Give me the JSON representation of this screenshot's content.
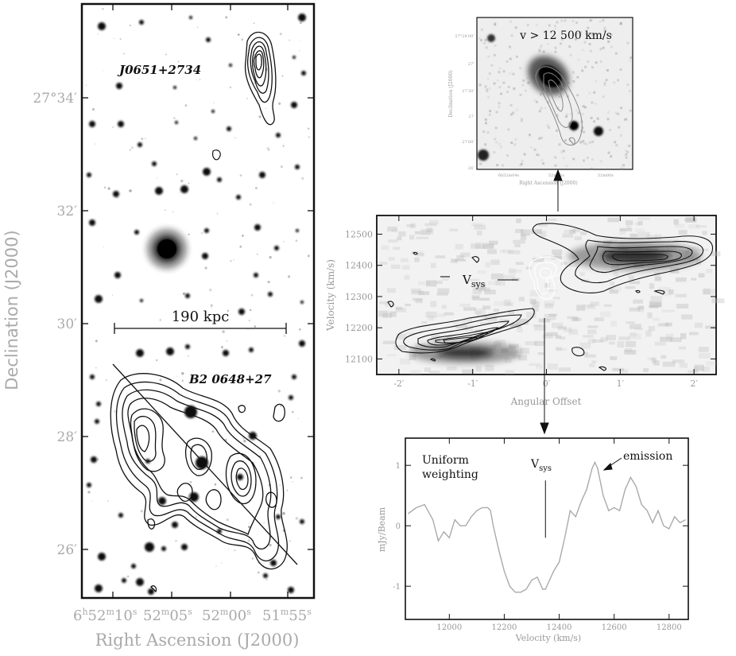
{
  "colors": {
    "axis": "#111111",
    "contour": "#111111",
    "white_contour": "#ffffff",
    "spectrum": "#aaaaaa",
    "label_gray": "#999999"
  },
  "chart_data": [
    {
      "type": "image-contour",
      "panel": "left",
      "xlabel": "Right Ascension (J2000)",
      "ylabel": "Declination (J2000)",
      "x_ticks": [
        {
          "value": "6h52m10s",
          "label_parts": [
            "6",
            "h",
            "52",
            "m",
            "10",
            "s"
          ]
        },
        {
          "value": "52m05s",
          "label_parts": [
            "52",
            "m",
            "05",
            "s"
          ]
        },
        {
          "value": "52m00s",
          "label_parts": [
            "52",
            "m",
            "00",
            "s"
          ]
        },
        {
          "value": "51m55s",
          "label_parts": [
            "51",
            "m",
            "55",
            "s"
          ]
        }
      ],
      "y_ticks": [
        "27°34′",
        "32′",
        "30′",
        "28′",
        "26′"
      ],
      "annotations": {
        "source_north": "J0651+2734",
        "source_south": "B2 0648+27",
        "scale_bar": "190 kpc"
      }
    },
    {
      "type": "image-contour",
      "panel": "top-right-inset",
      "label": "v > 12 500 km/s",
      "xlabel": "Right Ascension (J2000)",
      "ylabel": "Declination (J2000)",
      "x_ticks": [
        "6h52m04s",
        "52m02s",
        "52m00s"
      ],
      "y_ticks": [
        "27°28′00″",
        "27″",
        "27′30″",
        "27′",
        "27′00″",
        "26″"
      ]
    },
    {
      "type": "heatmap",
      "panel": "position-velocity",
      "xlabel": "Angular Offset",
      "ylabel": "Velocity (km/s)",
      "x_ticks": [
        "-2′",
        "-1′",
        "0′",
        "1′",
        "2′"
      ],
      "x_values": [
        -2,
        -1,
        0,
        1,
        2
      ],
      "xlim": [
        -2.3,
        2.3
      ],
      "y_ticks": [
        12100,
        12200,
        12300,
        12400,
        12500
      ],
      "ylim": [
        12050,
        12560
      ],
      "vsys_label": {
        "main": "V",
        "sub": "sys"
      },
      "vsys_velocity": 12350,
      "emission_blobs": [
        {
          "offset": -1.1,
          "velocity": 12120
        },
        {
          "offset": 1.2,
          "velocity": 12430
        }
      ]
    },
    {
      "type": "line",
      "panel": "spectrum",
      "xlabel": "Velocity (km/s)",
      "ylabel": "mJy/Beam",
      "x_ticks": [
        12000,
        12200,
        12400,
        12600,
        12800
      ],
      "xlim": [
        11840,
        12870
      ],
      "y_ticks": [
        1,
        0,
        -1
      ],
      "ylim": [
        -1.55,
        1.45
      ],
      "annotations": {
        "weighting": [
          "Uniform",
          "weighting"
        ],
        "vsys": {
          "main": "V",
          "sub": "sys"
        },
        "emission": "emission"
      },
      "vsys_velocity": 12350,
      "series": [
        {
          "x": [
            11850,
            11880,
            11910,
            11940,
            11960,
            11980,
            12000,
            12020,
            12040,
            12060,
            12080,
            12100,
            12120,
            12140,
            12150,
            12160,
            12180,
            12200,
            12220,
            12240,
            12260,
            12280,
            12300,
            12320,
            12340,
            12350,
            12360,
            12380,
            12400,
            12420,
            12440,
            12460,
            12480,
            12500,
            12520,
            12530,
            12540,
            12560,
            12580,
            12600,
            12620,
            12640,
            12660,
            12680,
            12700,
            12720,
            12740,
            12760,
            12780,
            12800,
            12820,
            12840,
            12860
          ],
          "values": [
            0.2,
            0.3,
            0.35,
            0.1,
            -0.25,
            -0.1,
            -0.2,
            0.1,
            0.0,
            0.0,
            0.15,
            0.25,
            0.3,
            0.3,
            0.25,
            0.0,
            -0.4,
            -0.75,
            -1.0,
            -1.1,
            -1.1,
            -1.05,
            -0.9,
            -0.85,
            -1.05,
            -1.05,
            -0.95,
            -0.75,
            -0.6,
            -0.2,
            0.25,
            0.15,
            0.4,
            0.6,
            0.95,
            1.05,
            0.95,
            0.5,
            0.25,
            0.3,
            0.25,
            0.6,
            0.8,
            0.65,
            0.35,
            0.25,
            0.05,
            0.25,
            0.0,
            -0.05,
            0.15,
            0.05,
            0.1
          ]
        }
      ]
    }
  ]
}
